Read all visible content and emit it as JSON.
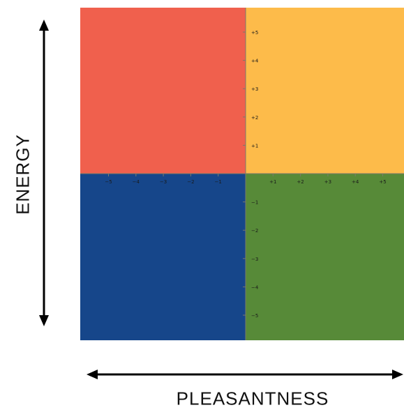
{
  "labels": {
    "y_axis": "ENERGY",
    "x_axis": "PLEASANTNESS"
  },
  "quadrants": {
    "top_left": {
      "color": "#F0604D"
    },
    "top_right": {
      "color": "#FDBB4A"
    },
    "bottom_left": {
      "color": "#16468A"
    },
    "bottom_right": {
      "color": "#578A38"
    }
  },
  "axis_line_color": "#7a7a6a",
  "ticks": {
    "x_negative": [
      "−5",
      "−4",
      "−3",
      "−2",
      "−1"
    ],
    "x_positive": [
      "+1",
      "+2",
      "+3",
      "+4",
      "+5"
    ],
    "y_positive": [
      "+5",
      "+4",
      "+3",
      "+2",
      "+1"
    ],
    "y_negative": [
      "−1",
      "−2",
      "−3",
      "−4",
      "−5"
    ]
  },
  "icons": {
    "energy_arrow": "double-headed-vertical-arrow",
    "pleasantness_arrow": "double-headed-horizontal-arrow"
  }
}
